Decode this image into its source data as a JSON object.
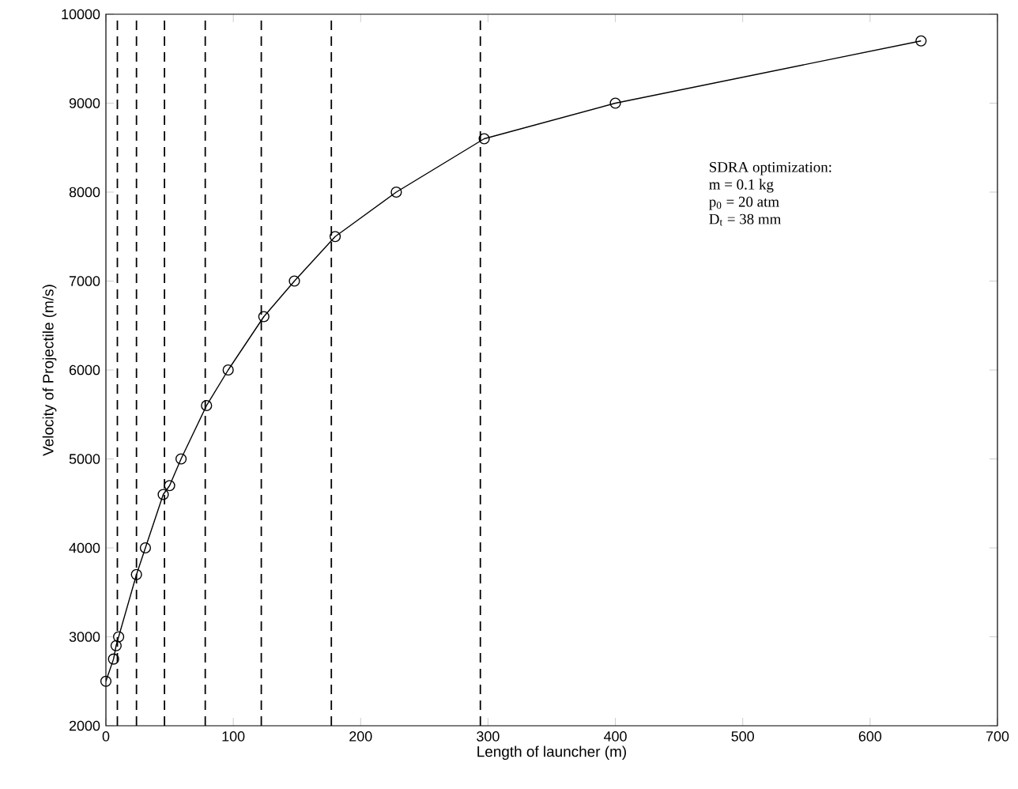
{
  "chart_data": {
    "type": "line",
    "xlabel": "Length of launcher (m)",
    "ylabel": "Velocity of Projectile (m/s)",
    "x": [
      0,
      6,
      8,
      10,
      24,
      31,
      45,
      50,
      59,
      79,
      96,
      124,
      148,
      180,
      228,
      297,
      400,
      640
    ],
    "series": [
      {
        "color": "#000000",
        "values": [
          2500,
          2750,
          2900,
          3000,
          3700,
          4000,
          4600,
          4700,
          5000,
          5600,
          6000,
          6600,
          7000,
          7500,
          8000,
          8600,
          9000,
          9700
        ]
      }
    ],
    "marker": "circle",
    "line_style": "solid",
    "grid": false,
    "xlim": [
      0,
      700
    ],
    "ylim": [
      2000,
      10000
    ],
    "xticks": [
      0,
      100,
      200,
      300,
      400,
      500,
      600,
      700
    ],
    "yticks": [
      2000,
      3000,
      4000,
      5000,
      6000,
      7000,
      8000,
      9000,
      10000
    ],
    "ref_lines": [
      {
        "axis": "x",
        "value": 9,
        "line_style": "dashed",
        "color": "#000000"
      },
      {
        "axis": "x",
        "value": 24,
        "line_style": "dashed",
        "color": "#000000"
      },
      {
        "axis": "x",
        "value": 46,
        "line_style": "dashed",
        "color": "#000000"
      },
      {
        "axis": "x",
        "value": 78,
        "line_style": "dashed",
        "color": "#000000"
      },
      {
        "axis": "x",
        "value": 122,
        "line_style": "dashed",
        "color": "#000000"
      },
      {
        "axis": "x",
        "value": 177,
        "line_style": "dashed",
        "color": "#000000"
      },
      {
        "axis": "x",
        "value": 294,
        "line_style": "dashed",
        "color": "#000000"
      }
    ],
    "annotations": [
      "SDRA optimization:",
      "m  = 0.1 kg",
      "p$_{0}$ = 20 atm",
      "D$_{t}$ = 38 mm"
    ]
  }
}
